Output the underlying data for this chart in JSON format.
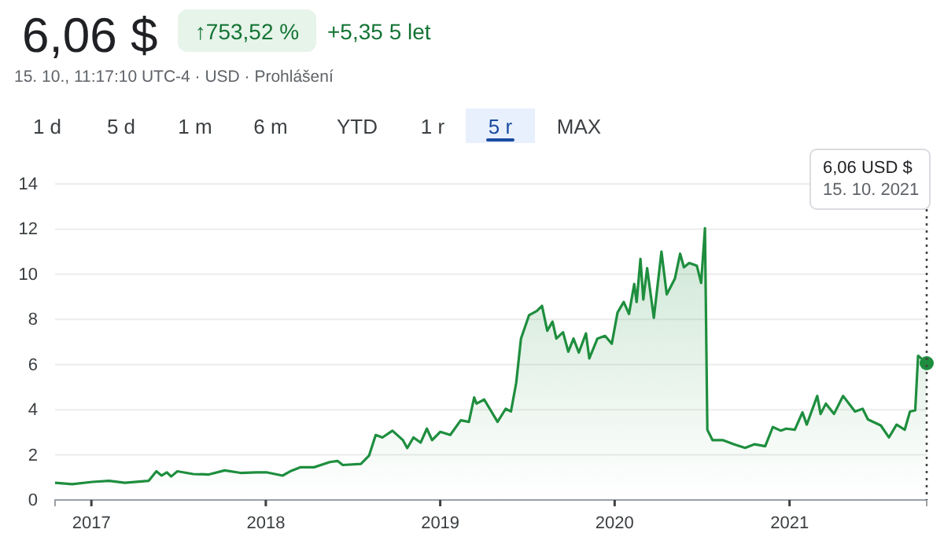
{
  "chart_data": {
    "type": "area",
    "title": "6,06 $",
    "subtitle": "15. 10., 11:17:10 UTC-4 · USD · Prohlášení",
    "annotations": [
      "↑753,52 %",
      "+5,35 5 let",
      "1 d",
      "5 d",
      "1 m",
      "6 m",
      "YTD",
      "1 r",
      "5 r",
      "MAX",
      "6,06 USD $\n15. 10. 2021"
    ],
    "x": [
      "2016-10-17",
      "2016-11-22",
      "2017-01-03",
      "2017-02-07",
      "2017-03-12",
      "2017-05-01",
      "2017-05-17",
      "2017-05-28",
      "2017-06-08",
      "2017-06-17",
      "2017-06-30",
      "2017-08-02",
      "2017-09-04",
      "2017-10-07",
      "2017-11-09",
      "2017-12-12",
      "2018-01-04",
      "2018-02-05",
      "2018-02-21",
      "2018-03-15",
      "2018-04-12",
      "2018-05-15",
      "2018-05-31",
      "2018-06-11",
      "2018-07-19",
      "2018-08-05",
      "2018-08-19",
      "2018-09-02",
      "2018-09-23",
      "2018-10-15",
      "2018-10-24",
      "2018-11-06",
      "2018-11-21",
      "2018-12-04",
      "2018-12-15",
      "2019-01-01",
      "2019-01-22",
      "2019-02-13",
      "2019-03-02",
      "2019-03-13",
      "2019-03-18",
      "2019-04-03",
      "2019-05-01",
      "2019-05-18",
      "2019-05-29",
      "2019-06-09",
      "2019-06-19",
      "2019-07-06",
      "2019-07-22",
      "2019-08-02",
      "2019-08-13",
      "2019-08-24",
      "2019-09-01",
      "2019-09-15",
      "2019-09-26",
      "2019-10-07",
      "2019-10-18",
      "2019-11-02",
      "2019-11-09",
      "2019-11-26",
      "2019-12-12",
      "2019-12-26",
      "2020-01-07",
      "2020-01-20",
      "2020-01-31",
      "2020-02-11",
      "2020-02-16",
      "2020-02-24",
      "2020-03-01",
      "2020-03-09",
      "2020-03-23",
      "2020-04-08",
      "2020-04-19",
      "2020-05-06",
      "2020-05-17",
      "2020-05-25",
      "2020-06-05",
      "2020-06-21",
      "2020-06-30",
      "2020-07-08",
      "2020-07-13",
      "2020-07-24",
      "2020-08-15",
      "2020-09-06",
      "2020-09-30",
      "2020-10-20",
      "2020-11-11",
      "2020-11-27",
      "2020-12-14",
      "2020-12-25",
      "2021-01-12",
      "2021-01-28",
      "2021-02-06",
      "2021-02-28",
      "2021-03-07",
      "2021-03-18",
      "2021-04-04",
      "2021-04-23",
      "2021-05-18",
      "2021-06-03",
      "2021-06-14",
      "2021-07-11",
      "2021-07-28",
      "2021-08-13",
      "2021-08-30",
      "2021-09-10",
      "2021-09-21",
      "2021-09-27",
      "2021-10-06",
      "2021-10-15"
    ],
    "series": [
      {
        "color": "#1e8e3e",
        "values": [
          0.76,
          0.7,
          0.8,
          0.85,
          0.76,
          0.85,
          1.27,
          1.08,
          1.22,
          1.04,
          1.27,
          1.15,
          1.13,
          1.31,
          1.2,
          1.22,
          1.22,
          1.08,
          1.27,
          1.45,
          1.45,
          1.68,
          1.73,
          1.55,
          1.6,
          1.96,
          2.88,
          2.77,
          3.07,
          2.65,
          2.3,
          2.77,
          2.54,
          3.16,
          2.65,
          3.02,
          2.88,
          3.53,
          3.46,
          4.54,
          4.27,
          4.45,
          3.46,
          4.04,
          3.92,
          5.19,
          7.15,
          8.19,
          8.37,
          8.6,
          7.5,
          7.9,
          7.15,
          7.43,
          6.57,
          7.15,
          6.53,
          7.38,
          6.27,
          7.15,
          7.27,
          6.92,
          8.3,
          8.77,
          8.24,
          9.57,
          8.77,
          10.68,
          8.88,
          10.27,
          8.07,
          11.0,
          9.11,
          9.8,
          10.91,
          10.31,
          10.5,
          10.38,
          9.62,
          12.04,
          3.11,
          2.65,
          2.65,
          2.47,
          2.31,
          2.47,
          2.38,
          3.23,
          3.07,
          3.16,
          3.11,
          3.88,
          3.34,
          4.61,
          3.81,
          4.27,
          3.81,
          4.61,
          3.92,
          4.04,
          3.57,
          3.3,
          2.77,
          3.34,
          3.11,
          3.92,
          3.97,
          6.39,
          6.23,
          6.06
        ]
      }
    ],
    "xlim": [
      "2016-10-17",
      "2021-10-15"
    ],
    "xticks": [
      {
        "value": "2017-01-01",
        "label": "2017"
      },
      {
        "value": "2018-01-01",
        "label": "2018"
      },
      {
        "value": "2019-01-01",
        "label": "2019"
      },
      {
        "value": "2020-01-01",
        "label": "2020"
      },
      {
        "value": "2021-01-01",
        "label": "2021"
      }
    ],
    "ylim": [
      0,
      14
    ],
    "yticks": [
      0,
      2,
      4,
      6,
      8,
      10,
      12,
      14
    ],
    "grid": "y",
    "ref_lines": [
      {
        "axis": "x",
        "value": "2021-10-15",
        "line_style": "dotted",
        "color": "#444444"
      }
    ]
  }
}
